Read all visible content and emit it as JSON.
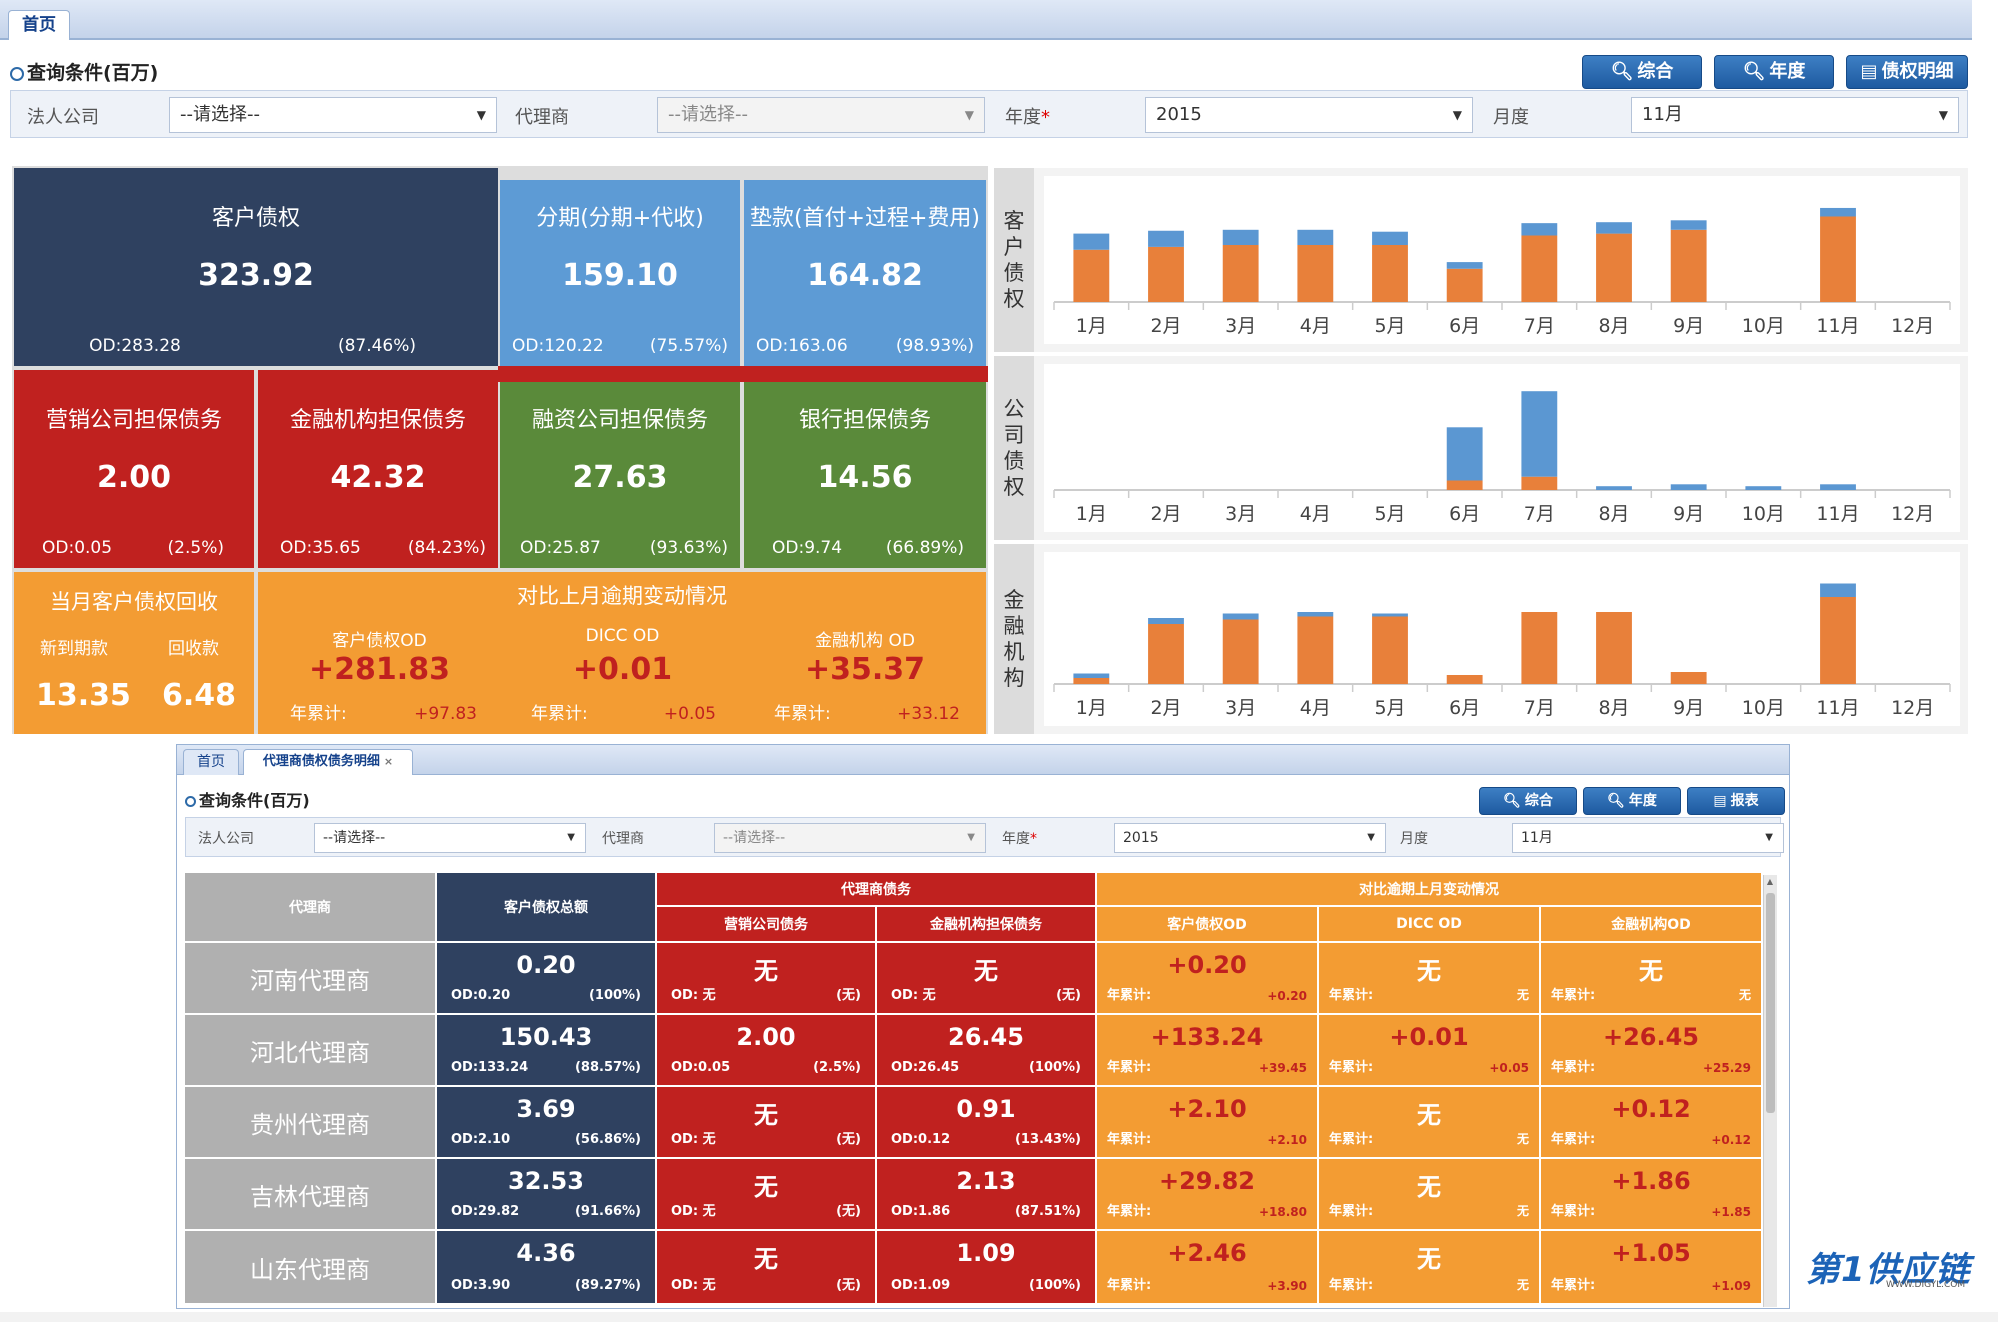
{
  "win1": {
    "tab_home": "首页",
    "query_title": "查询条件(百万)",
    "buttons": {
      "comprehensive": "综合",
      "annual": "年度",
      "debt_detail": "债权明细"
    },
    "filters": {
      "legal_company_label": "法人公司",
      "legal_company_value": "--请选择--",
      "agent_label": "代理商",
      "agent_placeholder": "--请选择--",
      "year_label": "年度",
      "year_required": "*",
      "year_value": "2015",
      "month_label": "月度",
      "month_value": "11月"
    },
    "tiles": {
      "customer_debt": {
        "title": "客户债权",
        "value": "323.92",
        "od": "OD:283.28",
        "pct": "(87.46%)"
      },
      "installment": {
        "title": "分期(分期+代收)",
        "value": "159.10",
        "od": "OD:120.22",
        "pct": "(75.57%)"
      },
      "advance": {
        "title": "垫款(首付+过程+费用)",
        "value": "164.82",
        "od": "OD:163.06",
        "pct": "(98.93%)"
      },
      "marketing_guarantee": {
        "title": "营销公司担保债务",
        "value": "2.00",
        "od": "OD:0.05",
        "pct": "(2.5%)"
      },
      "fin_inst_guarantee": {
        "title": "金融机构担保债务",
        "value": "42.32",
        "od": "OD:35.65",
        "pct": "(84.23%)"
      },
      "financing_guarantee": {
        "title": "融资公司担保债务",
        "value": "27.63",
        "od": "OD:25.87",
        "pct": "(93.63%)"
      },
      "bank_guarantee": {
        "title": "银行担保债务",
        "value": "14.56",
        "od": "OD:9.74",
        "pct": "(66.89%)"
      },
      "monthly_recovery": {
        "title": "当月客户债权回收",
        "new_label": "新到期款",
        "recv_label": "回收款",
        "new_value": "13.35",
        "recv_value": "6.48"
      },
      "compare": {
        "title": "对比上月逾期变动情况",
        "cols": [
          {
            "label": "客户债权OD",
            "value": "+281.83",
            "ytd_label": "年累计:",
            "ytd_value": "+97.83"
          },
          {
            "label": "DICC OD",
            "value": "+0.01",
            "ytd_label": "年累计:",
            "ytd_value": "+0.05"
          },
          {
            "label": "金融机构 OD",
            "value": "+35.37",
            "ytd_label": "年累计:",
            "ytd_value": "+33.12"
          }
        ]
      }
    },
    "colors": {
      "navy": "#2f4160",
      "light_blue": "#5d9bd5",
      "red": "#c0211f",
      "green": "#5a8a3a",
      "orange": "#f39c33",
      "bar_orange": "#e8803a",
      "bar_blue": "#5b97d2"
    }
  },
  "chart_data": [
    {
      "type": "bar",
      "title": "客户债权",
      "categories": [
        "1月",
        "2月",
        "3月",
        "4月",
        "5月",
        "6月",
        "7月",
        "8月",
        "9月",
        "10月",
        "11月",
        "12月"
      ],
      "stacked": true,
      "series": [
        {
          "values": [
            55,
            58,
            60,
            60,
            60,
            35,
            70,
            72,
            76,
            0,
            90,
            0
          ]
        },
        {
          "values": [
            17,
            17,
            16,
            16,
            14,
            7,
            13,
            12,
            10,
            0,
            9,
            0
          ]
        }
      ],
      "ylim": [
        0,
        120
      ]
    },
    {
      "type": "bar",
      "title": "公司债权",
      "categories": [
        "1月",
        "2月",
        "3月",
        "4月",
        "5月",
        "6月",
        "7月",
        "8月",
        "9月",
        "10月",
        "11月",
        "12月"
      ],
      "stacked": true,
      "series": [
        {
          "values": [
            0,
            0,
            0,
            0,
            0,
            5,
            7,
            0,
            0,
            0,
            0,
            0
          ]
        },
        {
          "values": [
            0,
            0,
            0,
            0,
            0,
            28,
            45,
            2,
            3,
            2,
            3,
            0
          ]
        }
      ],
      "ylim": [
        0,
        60
      ]
    },
    {
      "type": "bar",
      "title": "金融机构",
      "categories": [
        "1月",
        "2月",
        "3月",
        "4月",
        "5月",
        "6月",
        "7月",
        "8月",
        "9月",
        "10月",
        "11月",
        "12月"
      ],
      "stacked": true,
      "series": [
        {
          "values": [
            4,
            40,
            43,
            45,
            45,
            6,
            48,
            48,
            8,
            0,
            58,
            0
          ]
        },
        {
          "values": [
            3,
            4,
            4,
            3,
            2,
            0,
            0,
            0,
            0,
            0,
            9,
            0
          ]
        }
      ],
      "ylim": [
        0,
        80
      ]
    }
  ],
  "win2": {
    "tab_home": "首页",
    "tab_detail": "代理商债权债务明细",
    "tab_close": "×",
    "query_title": "查询条件(百万)",
    "buttons": {
      "comprehensive": "综合",
      "annual": "年度",
      "report": "报表"
    },
    "filters": {
      "legal_company_label": "法人公司",
      "legal_company_value": "--请选择--",
      "agent_label": "代理商",
      "agent_placeholder": "--请选择--",
      "year_label": "年度",
      "year_required": "*",
      "year_value": "2015",
      "month_label": "月度",
      "month_value": "11月"
    },
    "table": {
      "headers": {
        "agent": "代理商",
        "customer_total": "客户债权总额",
        "agent_debt": "代理商债务",
        "marketing": "营销公司债务",
        "fin_inst": "金融机构担保债务",
        "compare": "对比逾期上月变动情况",
        "cust_od": "客户债权OD",
        "dicc_od": "DICC OD",
        "fin_od": "金融机构OD"
      },
      "ytd_label": "年累计:",
      "rows": [
        {
          "name": "河南代理商",
          "total": {
            "v": "0.20",
            "od": "OD:0.20",
            "p": "(100%)"
          },
          "marketing": {
            "v": "无",
            "od": "OD: 无",
            "p": "(无)"
          },
          "fin": {
            "v": "无",
            "od": "OD: 无",
            "p": "(无)"
          },
          "cust_od": {
            "v": "+0.20",
            "ytd": "+0.20"
          },
          "dicc_od": {
            "v": "无",
            "ytd": "无"
          },
          "fin_od": {
            "v": "无",
            "ytd": "无"
          }
        },
        {
          "name": "河北代理商",
          "total": {
            "v": "150.43",
            "od": "OD:133.24",
            "p": "(88.57%)"
          },
          "marketing": {
            "v": "2.00",
            "od": "OD:0.05",
            "p": "(2.5%)"
          },
          "fin": {
            "v": "26.45",
            "od": "OD:26.45",
            "p": "(100%)"
          },
          "cust_od": {
            "v": "+133.24",
            "ytd": "+39.45"
          },
          "dicc_od": {
            "v": "+0.01",
            "ytd": "+0.05"
          },
          "fin_od": {
            "v": "+26.45",
            "ytd": "+25.29"
          }
        },
        {
          "name": "贵州代理商",
          "total": {
            "v": "3.69",
            "od": "OD:2.10",
            "p": "(56.86%)"
          },
          "marketing": {
            "v": "无",
            "od": "OD: 无",
            "p": "(无)"
          },
          "fin": {
            "v": "0.91",
            "od": "OD:0.12",
            "p": "(13.43%)"
          },
          "cust_od": {
            "v": "+2.10",
            "ytd": "+2.10"
          },
          "dicc_od": {
            "v": "无",
            "ytd": "无"
          },
          "fin_od": {
            "v": "+0.12",
            "ytd": "+0.12"
          }
        },
        {
          "name": "吉林代理商",
          "total": {
            "v": "32.53",
            "od": "OD:29.82",
            "p": "(91.66%)"
          },
          "marketing": {
            "v": "无",
            "od": "OD: 无",
            "p": "(无)"
          },
          "fin": {
            "v": "2.13",
            "od": "OD:1.86",
            "p": "(87.51%)"
          },
          "cust_od": {
            "v": "+29.82",
            "ytd": "+18.80"
          },
          "dicc_od": {
            "v": "无",
            "ytd": "无"
          },
          "fin_od": {
            "v": "+1.86",
            "ytd": "+1.85"
          }
        },
        {
          "name": "山东代理商",
          "total": {
            "v": "4.36",
            "od": "OD:3.90",
            "p": "(89.27%)"
          },
          "marketing": {
            "v": "无",
            "od": "OD: 无",
            "p": "(无)"
          },
          "fin": {
            "v": "1.09",
            "od": "OD:1.09",
            "p": "(100%)"
          },
          "cust_od": {
            "v": "+2.46",
            "ytd": "+3.90"
          },
          "dicc_od": {
            "v": "无",
            "ytd": "无"
          },
          "fin_od": {
            "v": "+1.05",
            "ytd": "+1.09"
          }
        }
      ]
    }
  },
  "logo": {
    "text": "第1供应链",
    "url": "WWW.DIGYL.COM"
  }
}
